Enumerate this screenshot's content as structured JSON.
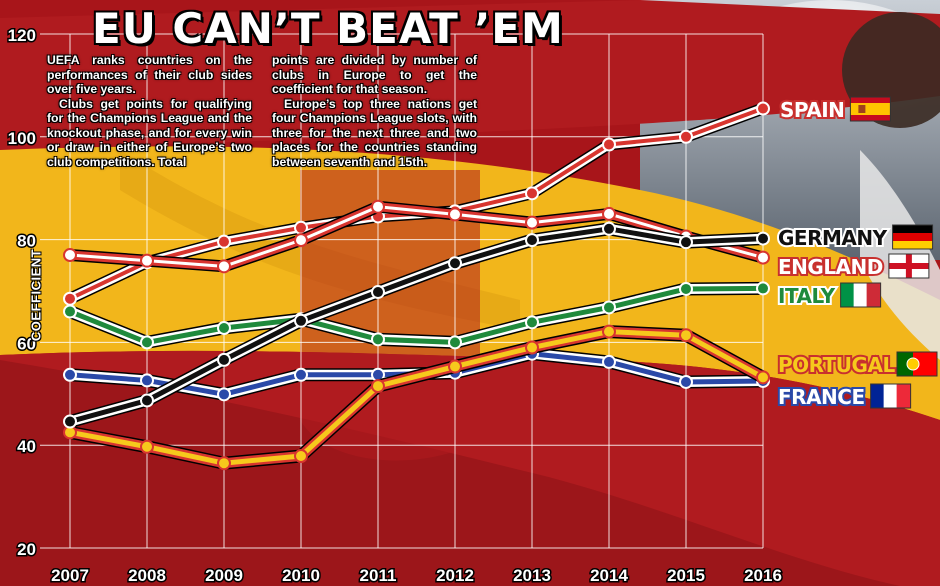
{
  "headline": "EU CAN’T BEAT ’EM",
  "blurb": {
    "left": [
      "UEFA ranks countries on the performances of their club sides over five years.",
      "Clubs get points for qualifying for the Champions League and the knockout phase, and for every win or draw in either of Europe’s two club competitions. Total"
    ],
    "right": [
      "points are divided by number of clubs in Europe to get the coefficient for that season.",
      "Europe’s top three nations get four Champions League slots, with three for the next three and two places for the countries standing between seventh and 15th."
    ]
  },
  "chart_data": {
    "type": "line",
    "title": "EU CAN’T BEAT ’EM",
    "xlabel": "",
    "ylabel": "COEFFICIENT",
    "x": [
      "2007",
      "2008",
      "2009",
      "2010",
      "2011",
      "2012",
      "2013",
      "2014",
      "2015",
      "2016"
    ],
    "y_ticks": [
      20,
      40,
      60,
      80,
      100,
      120
    ],
    "ylim": [
      20,
      120
    ],
    "grid": true,
    "legend": "right-side labels with flags",
    "series": [
      {
        "name": "SPAIN",
        "color": "#c8302e",
        "values": [
          68.5,
          75.6,
          79.6,
          82.3,
          84.5,
          85.5,
          89.0,
          98.5,
          100.0,
          105.5
        ]
      },
      {
        "name": "GERMANY",
        "color": "#111111",
        "values": [
          44.6,
          48.7,
          56.6,
          64.2,
          69.8,
          75.4,
          79.9,
          82.1,
          79.5,
          80.2
        ]
      },
      {
        "name": "ENGLAND",
        "color": "#c8302e",
        "values": [
          77.0,
          75.9,
          74.8,
          79.9,
          86.4,
          84.9,
          83.3,
          85.0,
          80.6,
          76.5
        ]
      },
      {
        "name": "ITALY",
        "color": "#1f8a3c",
        "values": [
          66.0,
          60.0,
          62.8,
          64.5,
          60.6,
          60.0,
          63.9,
          66.8,
          70.4,
          70.5
        ]
      },
      {
        "name": "PORTUGAL",
        "color": "#f2c318",
        "values": [
          42.5,
          39.7,
          36.5,
          37.9,
          51.5,
          55.3,
          59.0,
          62.1,
          61.4,
          53.2
        ]
      },
      {
        "name": "FRANCE",
        "color": "#2a49a8",
        "values": [
          53.7,
          52.6,
          49.9,
          53.7,
          53.7,
          54.1,
          57.8,
          56.2,
          52.3,
          52.5
        ]
      }
    ]
  }
}
